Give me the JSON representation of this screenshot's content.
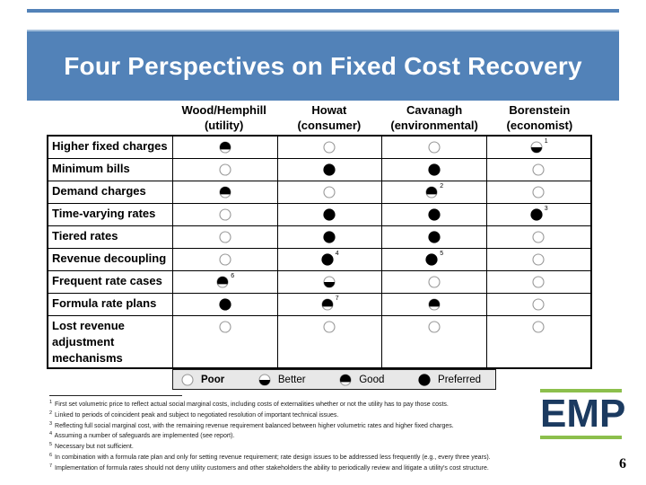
{
  "slide": {
    "title": "Four Perspectives on Fixed Cost Recovery",
    "page_number": "6",
    "accent_blue": "#5282b8",
    "logo": {
      "text": "EMP",
      "bar_color": "#8cbf4c",
      "text_color": "#1b3a60"
    }
  },
  "table": {
    "columns": [
      {
        "name": "Wood/Hemphill",
        "subtitle": "(utility)"
      },
      {
        "name": "Howat",
        "subtitle": "(consumer)"
      },
      {
        "name": "Cavanagh",
        "subtitle": "(environmental)"
      },
      {
        "name": "Borenstein",
        "subtitle": "(economist)"
      }
    ],
    "rows": [
      {
        "label": "Higher fixed charges",
        "cells": [
          {
            "rating": "good"
          },
          {
            "rating": "poor"
          },
          {
            "rating": "poor"
          },
          {
            "rating": "better",
            "footnote": "1"
          }
        ]
      },
      {
        "label": "Minimum bills",
        "cells": [
          {
            "rating": "poor"
          },
          {
            "rating": "preferred"
          },
          {
            "rating": "preferred"
          },
          {
            "rating": "poor"
          }
        ]
      },
      {
        "label": "Demand charges",
        "cells": [
          {
            "rating": "good"
          },
          {
            "rating": "poor"
          },
          {
            "rating": "good",
            "footnote": "2"
          },
          {
            "rating": "poor"
          }
        ]
      },
      {
        "label": "Time-varying rates",
        "cells": [
          {
            "rating": "poor"
          },
          {
            "rating": "preferred"
          },
          {
            "rating": "preferred"
          },
          {
            "rating": "preferred",
            "footnote": "3"
          }
        ]
      },
      {
        "label": "Tiered rates",
        "cells": [
          {
            "rating": "poor"
          },
          {
            "rating": "preferred"
          },
          {
            "rating": "preferred"
          },
          {
            "rating": "poor"
          }
        ]
      },
      {
        "label": "Revenue decoupling",
        "cells": [
          {
            "rating": "poor"
          },
          {
            "rating": "preferred",
            "footnote": "4"
          },
          {
            "rating": "preferred",
            "footnote": "5"
          },
          {
            "rating": "poor"
          }
        ]
      },
      {
        "label": "Frequent rate cases",
        "cells": [
          {
            "rating": "good",
            "footnote": "6"
          },
          {
            "rating": "better"
          },
          {
            "rating": "poor"
          },
          {
            "rating": "poor"
          }
        ]
      },
      {
        "label": "Formula rate plans",
        "cells": [
          {
            "rating": "preferred"
          },
          {
            "rating": "good",
            "footnote": "7"
          },
          {
            "rating": "good"
          },
          {
            "rating": "poor"
          }
        ]
      },
      {
        "label": "Lost revenue adjustment mechanisms",
        "cells": [
          {
            "rating": "poor"
          },
          {
            "rating": "poor"
          },
          {
            "rating": "poor"
          },
          {
            "rating": "poor"
          }
        ]
      }
    ]
  },
  "legend": {
    "items": [
      {
        "rating": "poor",
        "label": "Poor",
        "bold": true
      },
      {
        "rating": "better",
        "label": "Better",
        "bold": false
      },
      {
        "rating": "good",
        "label": "Good",
        "bold": false
      },
      {
        "rating": "preferred",
        "label": "Preferred",
        "bold": false
      }
    ]
  },
  "footnotes": [
    {
      "num": "1",
      "text": "First set volumetric price to reflect actual social marginal costs, including costs of externalities whether or not the utility has to pay those costs."
    },
    {
      "num": "2",
      "text": "Linked to periods of coincident peak and subject to negotiated resolution of important technical issues."
    },
    {
      "num": "3",
      "text": "Reflecting full social marginal cost, with the remaining revenue requirement balanced between higher volumetric rates and higher fixed charges."
    },
    {
      "num": "4",
      "text": "Assuming a number of safeguards are implemented (see report)."
    },
    {
      "num": "5",
      "text": "Necessary but not sufficient."
    },
    {
      "num": "6",
      "text": "In combination with a formula rate plan and only for setting revenue requirement; rate design issues to be addressed less frequently (e.g., every three years)."
    },
    {
      "num": "7",
      "text": "Implementation of formula rates should not deny utility customers and other stakeholders the ability to periodically review and litigate a utility's cost structure."
    }
  ]
}
